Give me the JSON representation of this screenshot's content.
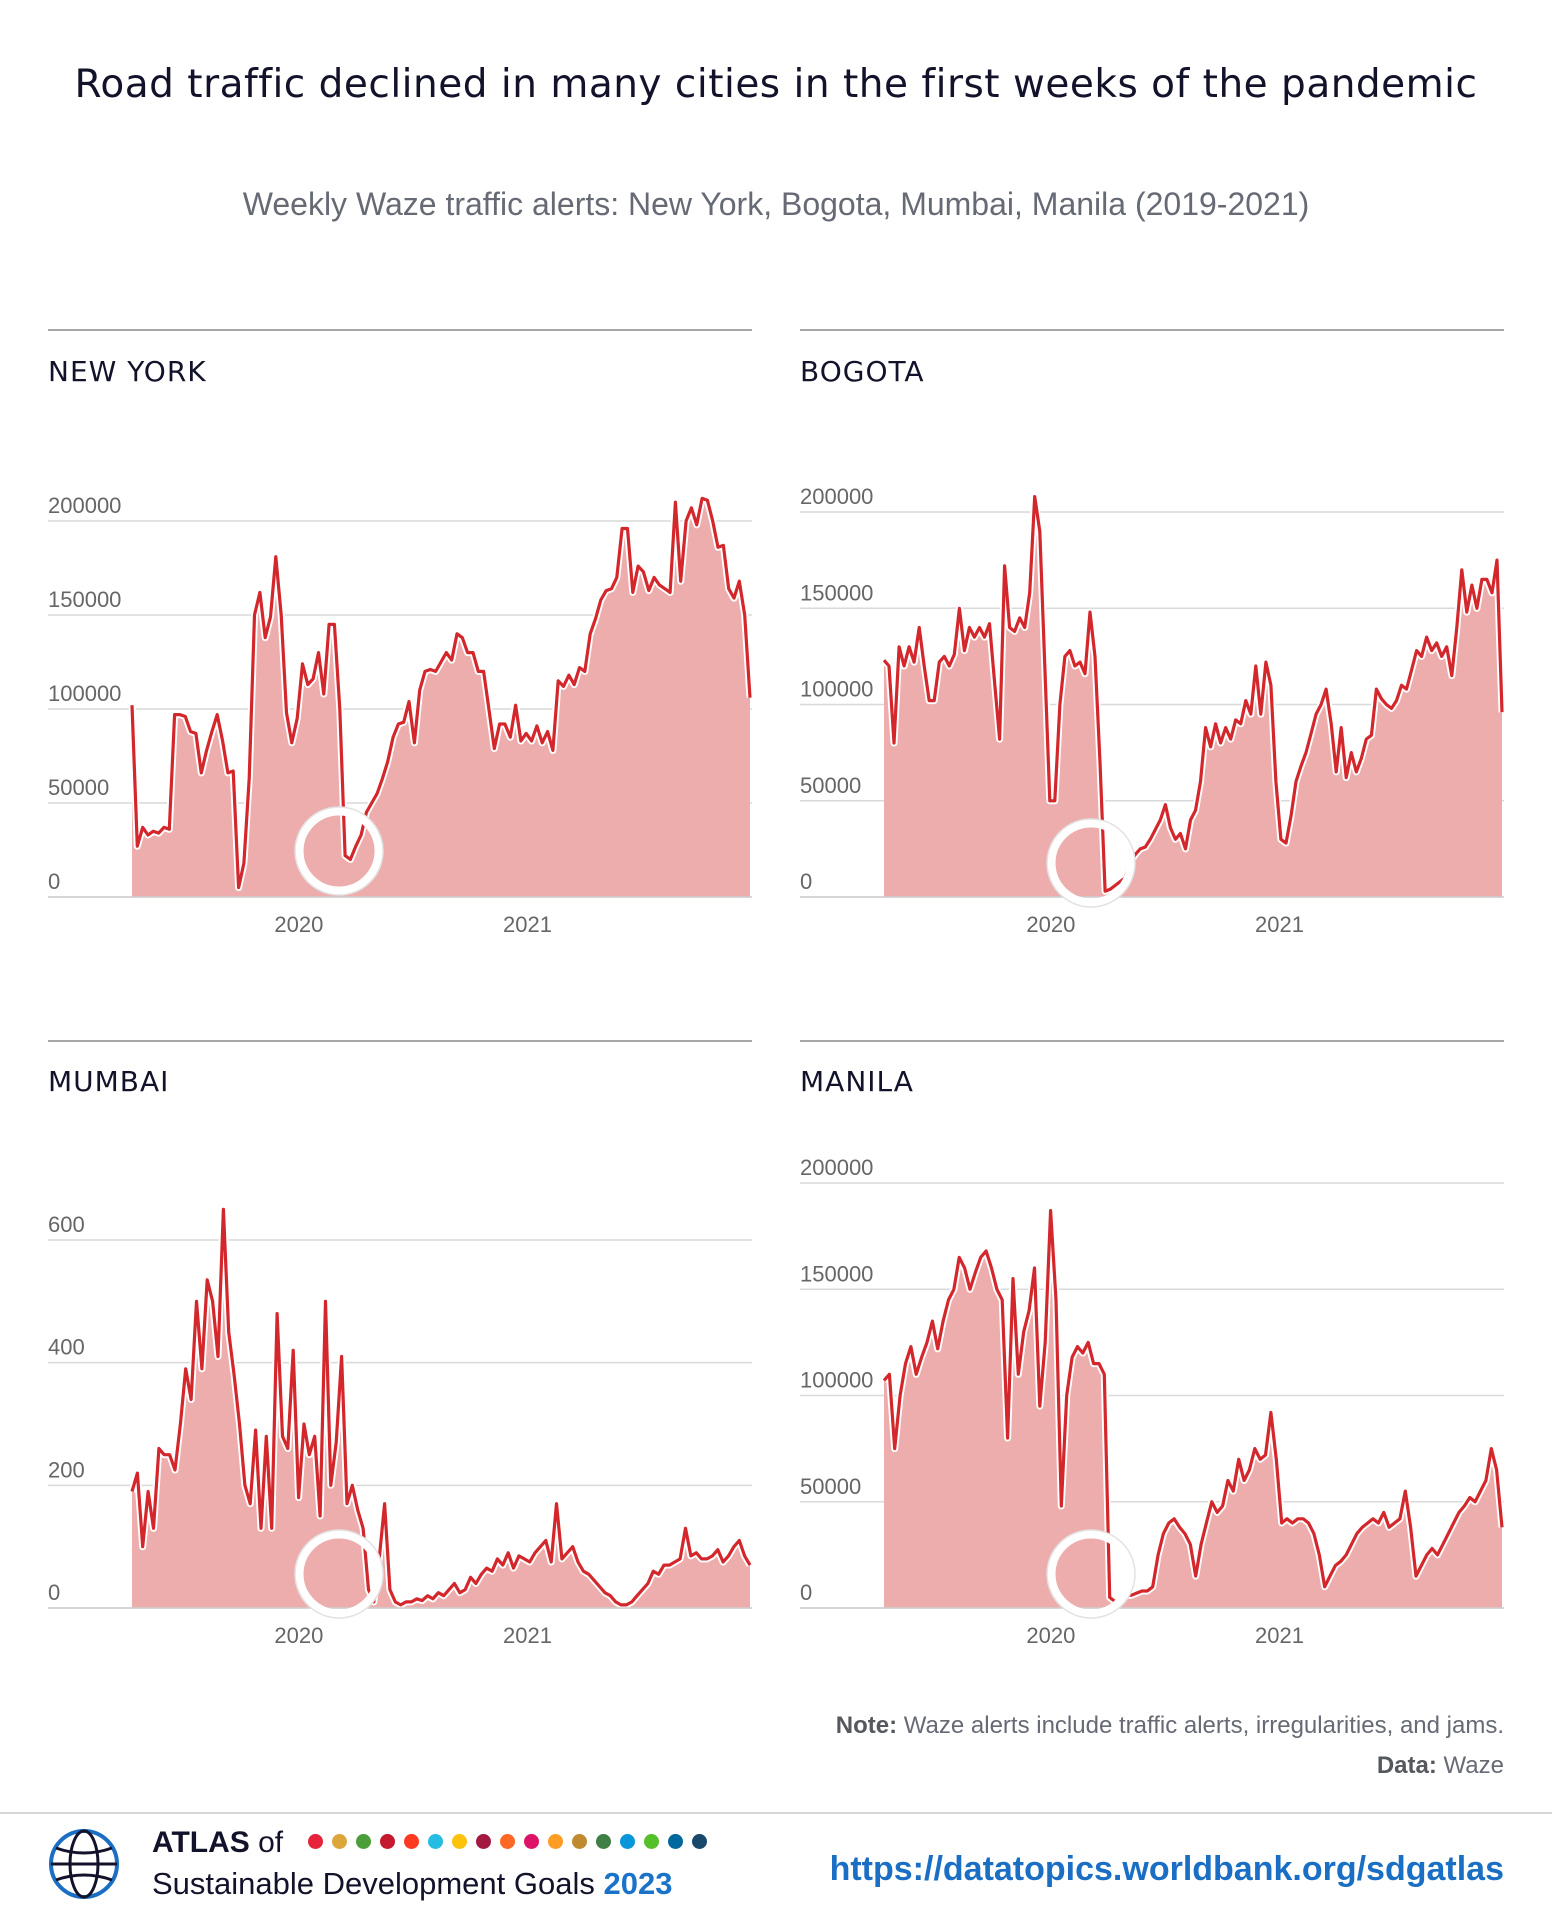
{
  "title": "Road traffic declined in many cities in the first weeks of the pandemic",
  "subtitle": "Weekly Waze traffic alerts: New York, Bogota, Mumbai, Manila (2019-2021)",
  "note_label": "Note:",
  "note_text": "Waze alerts include traffic alerts, irregularities, and jams.",
  "data_label": "Data:",
  "data_text": "Waze",
  "footer": {
    "atlas": "ATLAS",
    "of": "of",
    "sdg": "Sustainable Development Goals",
    "year": "2023",
    "url": "https://datatopics.worldbank.org/sdgatlas"
  },
  "colors": {
    "line": "#d3272c",
    "area": "#eeadad",
    "grid": "#d9d9d9",
    "sdg_dots": [
      "#e5243b",
      "#dda63a",
      "#4c9f38",
      "#c5192d",
      "#ff3a21",
      "#26bde2",
      "#fcc30b",
      "#a21942",
      "#fd6925",
      "#dd1367",
      "#fd9d24",
      "#bf8b2e",
      "#3f7e44",
      "#0a97d9",
      "#56c02b",
      "#00689d",
      "#19486a"
    ]
  },
  "chart_data": [
    {
      "type": "area",
      "city": "NEW YORK",
      "x_ticks": [
        "2020",
        "2021"
      ],
      "x_tick_positions": [
        0.27,
        0.64
      ],
      "y_ticks": [
        0,
        50000,
        100000,
        150000,
        200000
      ],
      "ylim": [
        0,
        200000
      ],
      "covid_marker": 0.335,
      "values": [
        102000,
        27000,
        37000,
        33000,
        35000,
        34000,
        37000,
        36000,
        97000,
        97000,
        96000,
        88000,
        87000,
        66000,
        78000,
        88000,
        97000,
        83000,
        66000,
        67000,
        5000,
        18000,
        63000,
        150000,
        162000,
        138000,
        149000,
        181000,
        150000,
        98000,
        82000,
        95000,
        124000,
        113000,
        116000,
        130000,
        108000,
        145000,
        145000,
        100000,
        22000,
        20000,
        27000,
        33000,
        45000,
        50000,
        55000,
        63000,
        72000,
        85000,
        92000,
        93000,
        104000,
        82000,
        110000,
        120000,
        121000,
        120000,
        125000,
        130000,
        126000,
        140000,
        138000,
        130000,
        130000,
        120000,
        120000,
        100000,
        79000,
        92000,
        92000,
        85000,
        102000,
        83000,
        87000,
        83000,
        91000,
        82000,
        88000,
        78000,
        115000,
        112000,
        118000,
        113000,
        122000,
        120000,
        140000,
        148000,
        158000,
        163000,
        164000,
        170000,
        196000,
        196000,
        162000,
        176000,
        173000,
        163000,
        170000,
        166000,
        164000,
        162000,
        210000,
        168000,
        200000,
        207000,
        198000,
        212000,
        211000,
        200000,
        186000,
        187000,
        164000,
        159000,
        168000,
        150000,
        106000
      ]
    },
    {
      "type": "area",
      "city": "BOGOTA",
      "x_ticks": [
        "2020",
        "2021"
      ],
      "x_tick_positions": [
        0.27,
        0.64
      ],
      "y_ticks": [
        0,
        50000,
        100000,
        150000,
        200000
      ],
      "ylim": [
        0,
        200000
      ],
      "covid_marker": 0.335,
      "values": [
        123000,
        120000,
        80000,
        130000,
        120000,
        130000,
        122000,
        140000,
        120000,
        102000,
        102000,
        122000,
        125000,
        120000,
        126000,
        150000,
        128000,
        140000,
        135000,
        140000,
        135000,
        142000,
        112000,
        82000,
        172000,
        140000,
        138000,
        145000,
        140000,
        158000,
        208000,
        190000,
        120000,
        50000,
        50000,
        100000,
        125000,
        128000,
        120000,
        122000,
        116000,
        148000,
        125000,
        70000,
        3000,
        4000,
        6000,
        8000,
        10000,
        18000,
        22000,
        25000,
        26000,
        30000,
        35000,
        40000,
        48000,
        36000,
        30000,
        33000,
        25000,
        40000,
        45000,
        60000,
        88000,
        78000,
        90000,
        80000,
        88000,
        82000,
        92000,
        90000,
        102000,
        95000,
        120000,
        95000,
        122000,
        110000,
        60000,
        30000,
        28000,
        42000,
        60000,
        68000,
        75000,
        85000,
        95000,
        100000,
        108000,
        90000,
        65000,
        88000,
        62000,
        75000,
        65000,
        72000,
        82000,
        84000,
        108000,
        103000,
        100000,
        98000,
        102000,
        110000,
        108000,
        118000,
        128000,
        125000,
        135000,
        128000,
        132000,
        125000,
        130000,
        115000,
        140000,
        170000,
        148000,
        162000,
        150000,
        165000,
        165000,
        158000,
        175000,
        96000
      ]
    },
    {
      "type": "area",
      "city": "MUMBAI",
      "x_ticks": [
        "2020",
        "2021"
      ],
      "x_tick_positions": [
        0.27,
        0.64
      ],
      "y_ticks": [
        0,
        200,
        400,
        600
      ],
      "ylim": [
        0,
        600
      ],
      "covid_marker": 0.335,
      "values": [
        190,
        220,
        100,
        190,
        130,
        260,
        250,
        250,
        225,
        300,
        390,
        340,
        500,
        390,
        535,
        500,
        410,
        650,
        450,
        380,
        300,
        200,
        170,
        290,
        130,
        280,
        130,
        480,
        280,
        260,
        420,
        180,
        300,
        250,
        280,
        150,
        500,
        200,
        270,
        410,
        170,
        200,
        160,
        130,
        30,
        10,
        80,
        170,
        30,
        10,
        5,
        10,
        10,
        15,
        12,
        20,
        15,
        25,
        20,
        30,
        40,
        25,
        30,
        50,
        40,
        55,
        65,
        60,
        80,
        70,
        90,
        65,
        85,
        80,
        75,
        90,
        100,
        110,
        75,
        170,
        80,
        90,
        100,
        75,
        60,
        55,
        45,
        35,
        25,
        20,
        10,
        5,
        5,
        10,
        20,
        30,
        40,
        60,
        55,
        70,
        70,
        75,
        80,
        130,
        85,
        90,
        80,
        80,
        85,
        95,
        75,
        85,
        100,
        110,
        85,
        70
      ]
    },
    {
      "type": "area",
      "city": "MANILA",
      "x_ticks": [
        "2020",
        "2021"
      ],
      "x_tick_positions": [
        0.27,
        0.64
      ],
      "y_ticks": [
        0,
        50000,
        100000,
        150000,
        200000
      ],
      "ylim": [
        0,
        200000
      ],
      "covid_marker": 0.335,
      "values": [
        107000,
        110000,
        75000,
        100000,
        115000,
        123000,
        110000,
        118000,
        125000,
        135000,
        122000,
        135000,
        145000,
        150000,
        165000,
        160000,
        150000,
        158000,
        165000,
        168000,
        160000,
        150000,
        145000,
        80000,
        155000,
        110000,
        130000,
        140000,
        160000,
        95000,
        125000,
        187000,
        145000,
        48000,
        100000,
        118000,
        123000,
        120000,
        125000,
        115000,
        115000,
        110000,
        5000,
        3000,
        4000,
        6000,
        6000,
        7000,
        8000,
        8000,
        10000,
        25000,
        35000,
        40000,
        42000,
        38000,
        35000,
        30000,
        15000,
        30000,
        40000,
        50000,
        45000,
        48000,
        60000,
        55000,
        70000,
        60000,
        65000,
        75000,
        70000,
        72000,
        92000,
        70000,
        40000,
        42000,
        40000,
        42000,
        42000,
        40000,
        35000,
        25000,
        10000,
        15000,
        20000,
        22000,
        25000,
        30000,
        35000,
        38000,
        40000,
        42000,
        40000,
        45000,
        38000,
        40000,
        42000,
        55000,
        38000,
        15000,
        20000,
        25000,
        28000,
        25000,
        30000,
        35000,
        40000,
        45000,
        48000,
        52000,
        50000,
        55000,
        60000,
        75000,
        65000,
        38000
      ]
    }
  ]
}
